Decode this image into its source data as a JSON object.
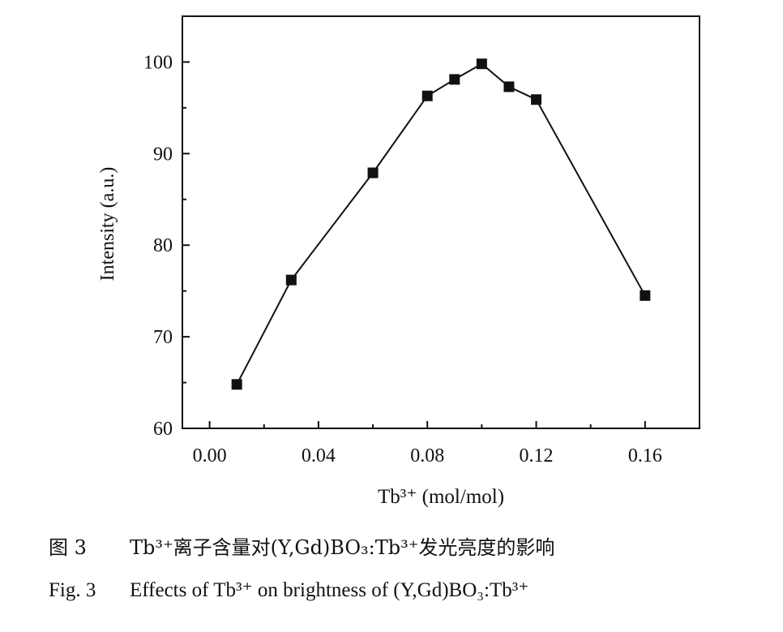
{
  "chart_data": {
    "type": "line",
    "x": [
      0.01,
      0.03,
      0.06,
      0.08,
      0.09,
      0.1,
      0.11,
      0.12,
      0.16
    ],
    "series": [
      {
        "values": [
          64.8,
          76.2,
          87.9,
          96.3,
          98.1,
          99.8,
          97.3,
          95.9,
          74.5
        ]
      }
    ],
    "xlabel": "Tb³⁺ (mol/mol)",
    "ylabel": "Intensity (a.u.)",
    "xlim": [
      -0.01,
      0.18
    ],
    "ylim": [
      60,
      105
    ],
    "xticks": [
      "0.00",
      "0.04",
      "0.08",
      "0.12",
      "0.16"
    ],
    "yticks": [
      "60",
      "70",
      "80",
      "90",
      "100"
    ],
    "marker": "square",
    "grid": false,
    "line_color": "#111111"
  },
  "caption": {
    "cn_label": "图 3",
    "cn_text": "Tb³⁺离子含量对(Y,Gd)BO₃:Tb³⁺发光亮度的影响",
    "en_label": "Fig. 3",
    "en_text": "Effects of Tb³⁺ on brightness of (Y,Gd)BO₃:Tb³⁺"
  }
}
